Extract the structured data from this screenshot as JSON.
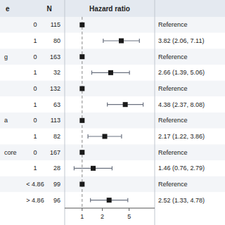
{
  "chart_data": {
    "type": "forest",
    "headers": [
      "e",
      "N",
      "Hazard ratio"
    ],
    "group_labels": [
      null,
      null,
      "g",
      null,
      null,
      null,
      "a",
      null,
      "core",
      null,
      null,
      null
    ],
    "categories": [
      "0",
      "1",
      "0",
      "1",
      "0",
      "1",
      "0",
      "1",
      "0",
      "1",
      "< 4.86",
      "> 4.86"
    ],
    "n": [
      115,
      80,
      163,
      32,
      132,
      63,
      113,
      82,
      167,
      28,
      99,
      96
    ],
    "values": [
      1.0,
      3.82,
      1.0,
      2.66,
      1.0,
      4.38,
      1.0,
      2.17,
      1.0,
      1.46,
      1.0,
      2.52
    ],
    "ci_lo": [
      1.0,
      2.06,
      1.0,
      1.39,
      1.0,
      2.37,
      1.0,
      1.22,
      1.0,
      0.76,
      1.0,
      1.33
    ],
    "ci_hi": [
      1.0,
      7.11,
      1.0,
      5.06,
      1.0,
      8.08,
      1.0,
      3.86,
      1.0,
      2.79,
      1.0,
      4.78
    ],
    "annotations": [
      "Reference",
      "3.82 (2.06, 7.11)",
      "Reference",
      "2.66 (1.39, 5.06)",
      "Reference",
      "4.38 (2.37, 8.08)",
      "Reference",
      "2.17 (1.22, 3.86)",
      "Reference",
      "1.46 (0.76, 2.79)",
      "Reference",
      "2.52 (1.33, 4.78)"
    ],
    "ref_line": 1,
    "log": "x",
    "xlim": [
      0.55,
      12.0
    ],
    "xticks": [
      1,
      2,
      5
    ],
    "color": "#1a1a1a"
  }
}
